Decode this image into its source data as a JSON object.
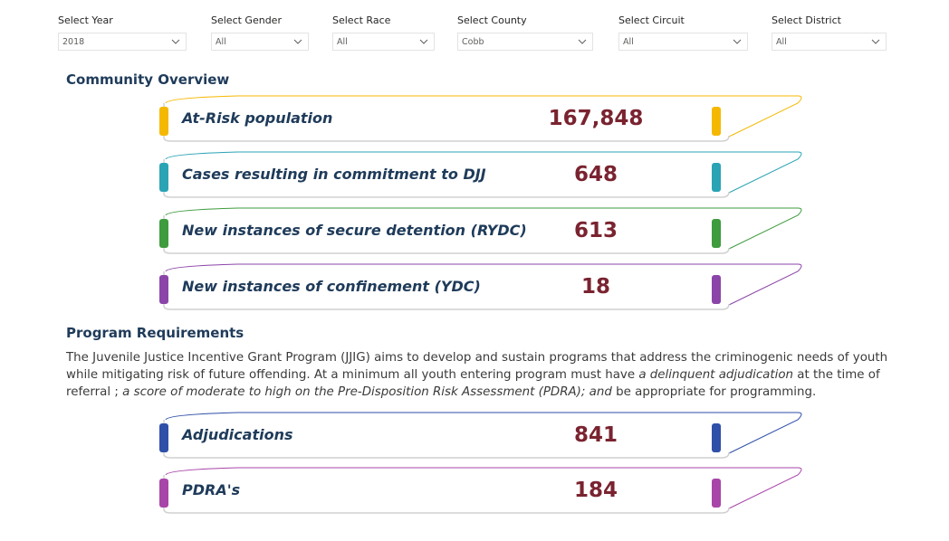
{
  "slicers": [
    {
      "label": "Select Year",
      "value": "2018"
    },
    {
      "label": "Select Gender",
      "value": "All"
    },
    {
      "label": "Select Race",
      "value": "All"
    },
    {
      "label": "Select County",
      "value": "Cobb"
    },
    {
      "label": "Select Circuit",
      "value": "All"
    },
    {
      "label": "Select District",
      "value": "All"
    }
  ],
  "community_overview": {
    "title": "Community Overview",
    "kpis": [
      {
        "label": "At-Risk population",
        "value": "167,848",
        "color": "#f5b800"
      },
      {
        "label": "Cases resulting in commitment to DJJ",
        "value": "648",
        "color": "#2aa3b5"
      },
      {
        "label": "New instances of secure detention (RYDC)",
        "value": "613",
        "color": "#3e9b3e"
      },
      {
        "label": "New instances of confinement (YDC)",
        "value": "18",
        "color": "#8b45a8"
      }
    ]
  },
  "program_requirements": {
    "title": "Program Requirements",
    "text_1": "The Juvenile Justice Incentive Grant Program (JJIG) aims to develop and sustain programs that address the criminogenic needs of youth while mitigating risk of future offending.  At a minimum all youth entering program must have ",
    "text_2": "a delinquent adjudication",
    "text_3": " at the time of referral ; ",
    "text_4": "a score of moderate to high on the Pre-Disposition Risk Assessment (PDRA); and",
    "text_5": " be appropriate for programming.",
    "kpis": [
      {
        "label": "Adjudications",
        "value": "841",
        "color": "#2f4fa8"
      },
      {
        "label": "PDRA's",
        "value": "184",
        "color": "#a845a8"
      }
    ]
  }
}
